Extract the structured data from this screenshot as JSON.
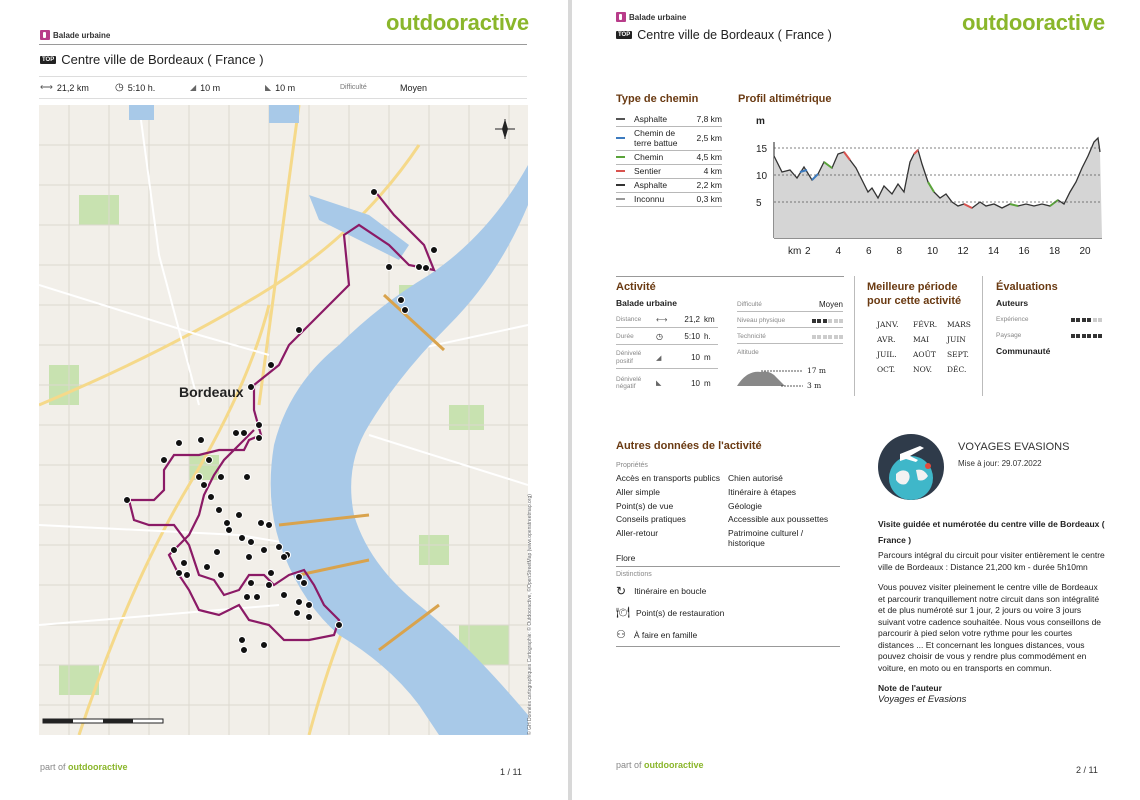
{
  "page1": {
    "brand": "outdooractive",
    "category": "Balade urbaine",
    "top_badge": "TOP",
    "title": "Centre ville de Bordeaux ( France )",
    "stats": {
      "distance": "21,2 km",
      "duration": "5:10 h.",
      "ascent": "10 m",
      "descent": "10 m",
      "difficulty_label": "Difficulté",
      "difficulty_value": "Moyen"
    },
    "map": {
      "city_label": "Bordeaux",
      "attribution": "© GH Données cartographiques Cartographie: © Outdooractive, ©OpenStreetMap (www.openstreetmap.org)"
    },
    "footer": {
      "prefix": "part of ",
      "brand": "outdooractive"
    },
    "page_number": "1 / 11"
  },
  "page2": {
    "brand": "outdooractive",
    "category": "Balade urbaine",
    "top_badge": "TOP",
    "title": "Centre ville de Bordeaux ( France )",
    "path_type": {
      "heading": "Type de chemin",
      "rows": [
        {
          "label": "Asphalte",
          "value": "7,8 km",
          "color": "#555555"
        },
        {
          "label": "Chemin de terre battue",
          "value": "2,5 km",
          "color": "#3d7bbf"
        },
        {
          "label": "Chemin",
          "value": "4,5 km",
          "color": "#5aa33a"
        },
        {
          "label": "Sentier",
          "value": "4 km",
          "color": "#d9534f"
        },
        {
          "label": "Asphalte",
          "value": "2,2 km",
          "color": "#333333"
        },
        {
          "label": "Inconnu",
          "value": "0,3 km",
          "color": "#999999"
        }
      ]
    },
    "profile": {
      "heading": "Profil altimétrique",
      "y_unit": "m",
      "y_ticks": [
        "15",
        "10",
        "5"
      ],
      "x_unit": "km",
      "x_ticks": [
        "2",
        "4",
        "6",
        "8",
        "10",
        "12",
        "14",
        "16",
        "18",
        "20"
      ]
    },
    "activity": {
      "heading": "Activité",
      "type": "Balade urbaine",
      "distance_label": "Distance",
      "distance_value": "21,2",
      "distance_unit": "km",
      "duration_label": "Durée",
      "duration_value": "5:10",
      "duration_unit": "h.",
      "ascent_label": "Dénivelé positif",
      "ascent_value": "10",
      "ascent_unit": "m",
      "descent_label": "Dénivelé négatif",
      "descent_value": "10",
      "descent_unit": "m",
      "difficulty_label": "Difficulté",
      "difficulty_value": "Moyen",
      "physical_label": "Niveau physique",
      "physical_level": 3,
      "technique_label": "Technicité",
      "technique_level": 0,
      "altitude_label": "Altitude",
      "alt_max": "17 m",
      "alt_min": "3 m"
    },
    "best_period": {
      "heading": "Meilleure période pour cette activité",
      "months": [
        "JANV.",
        "FÉVR.",
        "MARS",
        "AVR.",
        "MAI",
        "JUIN",
        "JUIL.",
        "AOÛT",
        "SEPT.",
        "OCT.",
        "NOV.",
        "DÉC."
      ]
    },
    "ratings": {
      "heading": "Évaluations",
      "authors_label": "Auteurs",
      "experience_label": "Expérience",
      "experience_level": 4,
      "landscape_label": "Paysage",
      "landscape_level": 6,
      "community_label": "Communauté"
    },
    "other": {
      "heading": "Autres données de l'activité",
      "properties_label": "Propriétés",
      "properties": [
        "Accès en transports publics",
        "Chien autorisé",
        "Aller simple",
        "Itinéraire à étapes",
        "Point(s) de vue",
        "Géologie",
        "Conseils pratiques",
        "Accessible aux poussettes",
        "Aller-retour",
        "Patrimoine culturel / historique"
      ],
      "flore": "Flore",
      "distinctions_label": "Distinctions",
      "distinctions": [
        "Itinéraire en boucle",
        "Point(s) de restauration",
        "À faire en famille"
      ]
    },
    "org": {
      "name": "VOYAGES EVASIONS",
      "updated": "Mise à jour: 29.07.2022"
    },
    "description": {
      "bold": "Visite guidée et numérotée du centre ville de Bordeaux ( France )",
      "p1": "Parcours intégral du circuit pour visiter entièrement le centre ville de Bordeaux : Distance 21,200 km - durée 5h10mn",
      "p2": "Vous pouvez visiter pleinement le centre ville de Bordeaux et parcourir tranquillement notre circuit dans son intégralité et de plus numéroté sur 1 jour, 2 jours ou voire 3 jours suivant votre cadence souhaitée. Nous vous conseillons de parcourir à pied selon votre rythme pour les courtes distances ... Et concernant les longues distances, vous pouvez choisir de vous y rendre plus commodément en voiture, en moto ou en transports en commun.",
      "author_label": "Note de l'auteur",
      "author_value": "Voyages et Evasions"
    },
    "footer": {
      "prefix": "part of ",
      "brand": "outdooractive"
    },
    "page_number": "2 / 11"
  }
}
